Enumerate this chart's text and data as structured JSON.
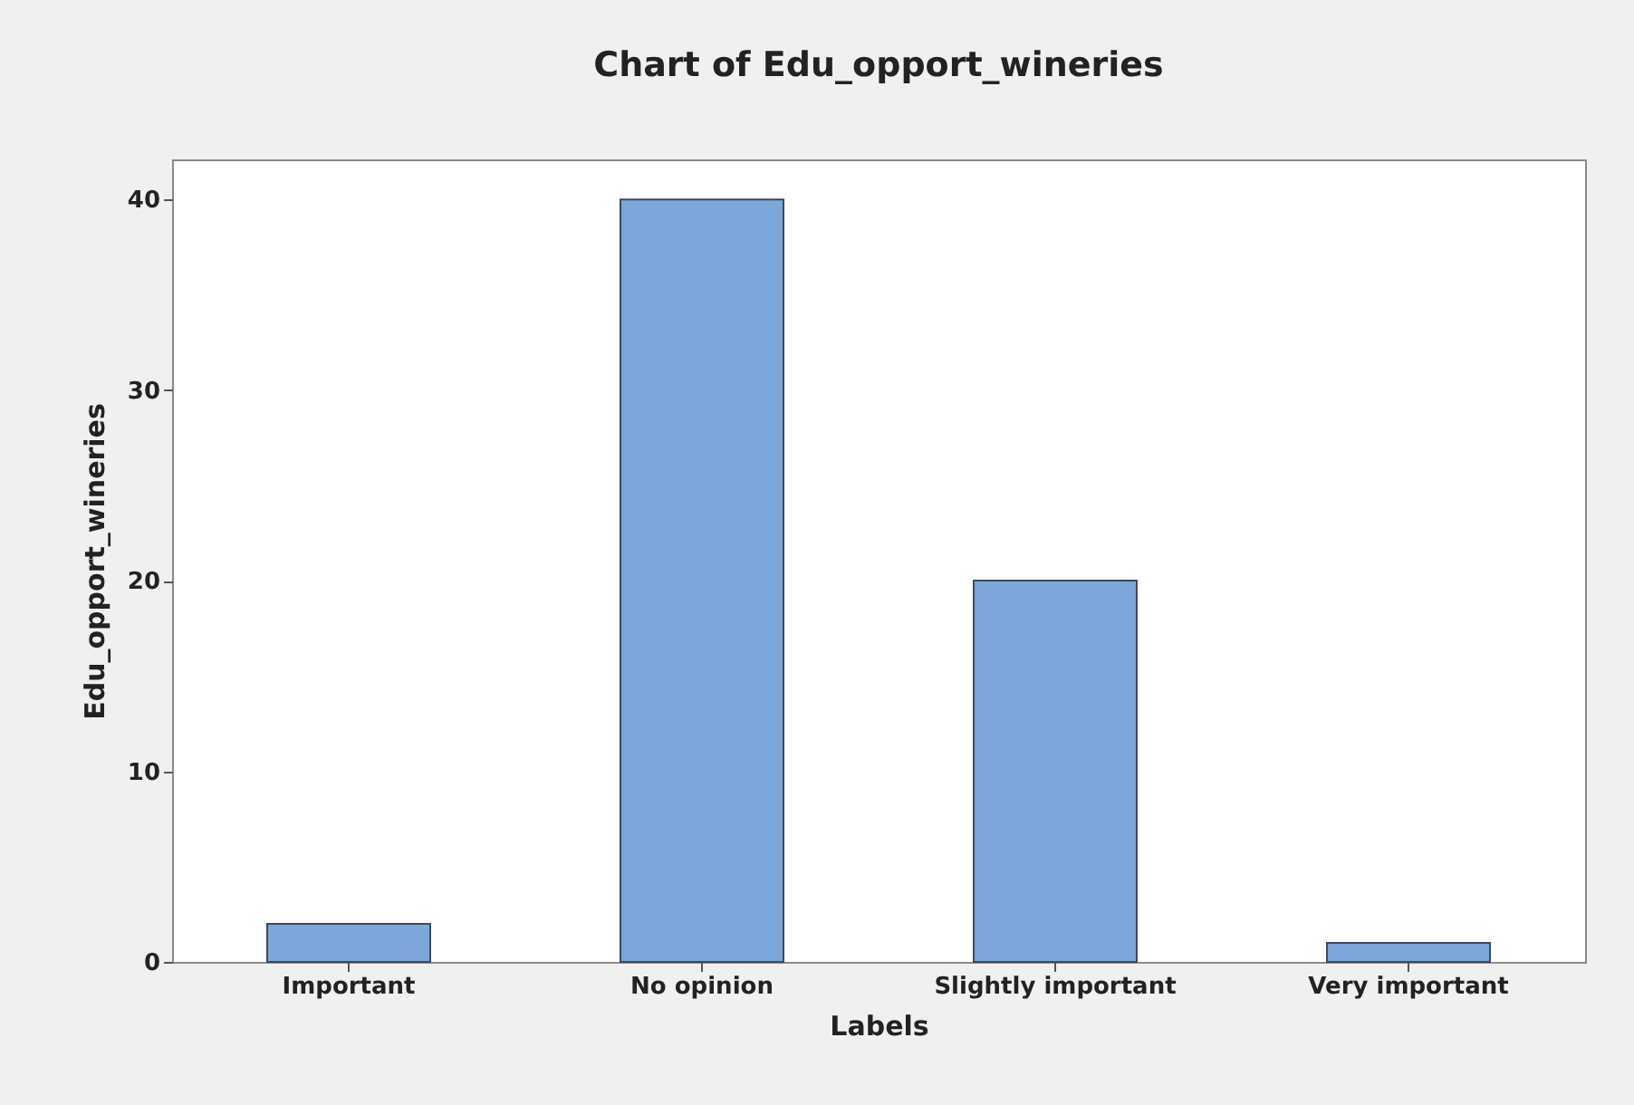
{
  "chart_data": {
    "type": "bar",
    "title": "Chart of Edu_opport_wineries",
    "xlabel": "Labels",
    "ylabel": "Edu_opport_wineries",
    "categories": [
      "Important",
      "No opinion",
      "Slightly  important",
      "Very important"
    ],
    "values": [
      2,
      40,
      20,
      1
    ],
    "color": "#7ba7da",
    "ylim": [
      0,
      42.1
    ],
    "yticks": [
      0,
      10,
      20,
      30,
      40
    ],
    "grid": false
  }
}
